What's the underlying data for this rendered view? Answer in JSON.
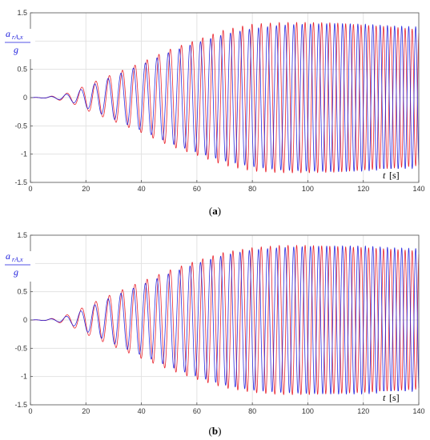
{
  "captions": {
    "a": "(a)",
    "b": "(b)"
  },
  "axis_text": {
    "ylabel_numerator": "a",
    "ylabel_subscript": "rA,x",
    "ylabel_denominator": "g",
    "xlabel_var": "t",
    "xlabel_unit": "[s]"
  },
  "colors": {
    "series_red": "#e8141e",
    "series_blue": "#1a1adc",
    "grid": "#e3e3e3"
  },
  "chart_data": [
    {
      "type": "line",
      "panel": "a",
      "xlim": [
        0,
        140
      ],
      "ylim": [
        -1.5,
        1.5
      ],
      "xticks": [
        0,
        20,
        40,
        60,
        80,
        100,
        120,
        140
      ],
      "yticks": [
        1.5,
        1,
        0.5,
        0,
        -0.5,
        -1,
        -1.5
      ],
      "ytick_labels": [
        "1.5",
        "1",
        "0.5",
        "0",
        "-0.5",
        "-1",
        "-1.5"
      ],
      "grid": true,
      "series": [
        {
          "color": "red",
          "envelope": {
            "t": [
              0,
              5,
              10,
              15,
              20,
              30,
              40,
              50,
              60,
              70,
              80,
              90,
              100,
              110,
              120,
              130,
              140
            ],
            "amplitude": [
              0,
              0.01,
              0.04,
              0.1,
              0.22,
              0.42,
              0.62,
              0.85,
              1.02,
              1.2,
              1.3,
              1.33,
              1.33,
              1.32,
              1.28,
              1.25,
              1.2
            ]
          }
        },
        {
          "color": "blue",
          "envelope": {
            "t": [
              0,
              5,
              10,
              15,
              20,
              30,
              40,
              50,
              60,
              70,
              80,
              90,
              100,
              110,
              120,
              130,
              140
            ],
            "amplitude": [
              0,
              0.01,
              0.03,
              0.08,
              0.18,
              0.38,
              0.58,
              0.8,
              0.97,
              1.12,
              1.22,
              1.28,
              1.3,
              1.31,
              1.3,
              1.27,
              1.25
            ]
          }
        }
      ]
    },
    {
      "type": "line",
      "panel": "b",
      "xlim": [
        0,
        140
      ],
      "ylim": [
        -1.5,
        1.5
      ],
      "xticks": [
        0,
        20,
        40,
        60,
        80,
        100,
        120,
        140
      ],
      "yticks": [
        1.5,
        1,
        0.5,
        0,
        -0.5,
        -1,
        -1.5
      ],
      "ytick_labels": [
        "1.5",
        "1",
        "0.5",
        "0",
        "-0.5",
        "-1",
        "-1.5"
      ],
      "grid": true,
      "series": [
        {
          "color": "red",
          "envelope": {
            "t": [
              0,
              5,
              10,
              15,
              20,
              30,
              40,
              50,
              60,
              70,
              80,
              90,
              100,
              110,
              120,
              130,
              140
            ],
            "amplitude": [
              0,
              0.01,
              0.04,
              0.12,
              0.25,
              0.47,
              0.68,
              0.88,
              1.05,
              1.2,
              1.28,
              1.32,
              1.32,
              1.3,
              1.28,
              1.25,
              1.22
            ]
          }
        },
        {
          "color": "blue",
          "envelope": {
            "t": [
              0,
              5,
              10,
              15,
              20,
              30,
              40,
              50,
              60,
              70,
              80,
              90,
              100,
              110,
              120,
              130,
              140
            ],
            "amplitude": [
              0,
              0.01,
              0.03,
              0.09,
              0.2,
              0.42,
              0.62,
              0.82,
              1.0,
              1.15,
              1.24,
              1.28,
              1.3,
              1.31,
              1.31,
              1.28,
              1.26
            ]
          }
        }
      ]
    }
  ]
}
